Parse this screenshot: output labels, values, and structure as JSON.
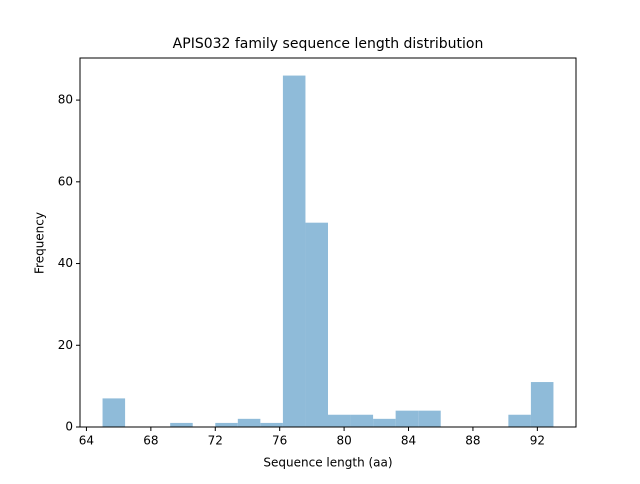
{
  "chart_data": {
    "type": "histogram",
    "title": "APIS032 family sequence length distribution",
    "x_label": "Sequence length (aa)",
    "y_label": "Frequency",
    "bins": [
      65,
      66.4,
      67.8,
      69.2,
      70.6,
      72,
      73.4,
      74.8,
      76.2,
      77.6,
      79,
      80.4,
      81.8,
      83.2,
      84.6,
      86,
      87.4,
      88.8,
      90.2,
      91.6,
      93
    ],
    "values": [
      7,
      0,
      0,
      1,
      0,
      1,
      2,
      1,
      86,
      50,
      3,
      3,
      2,
      4,
      4,
      0,
      0,
      0,
      3,
      11
    ],
    "color": "#8fbbd9",
    "xlim": [
      63.6,
      94.4
    ],
    "xticks": [
      64,
      68,
      72,
      76,
      80,
      84,
      88,
      92
    ],
    "ylim": [
      0,
      90.3
    ],
    "yticks": [
      0,
      20,
      40,
      60,
      80
    ],
    "grid": false
  }
}
